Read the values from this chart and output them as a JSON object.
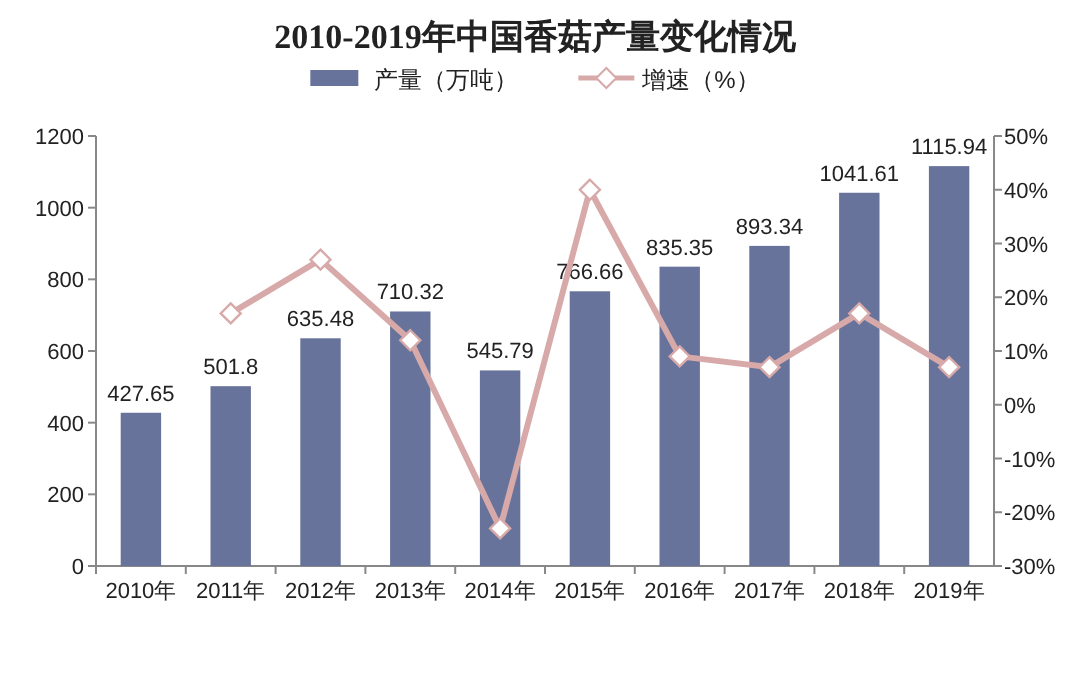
{
  "chart_data": {
    "type": "bar",
    "title": "2010-2019年中国香菇产量变化情况",
    "categories": [
      "2010年",
      "2011年",
      "2012年",
      "2013年",
      "2014年",
      "2015年",
      "2016年",
      "2017年",
      "2018年",
      "2019年"
    ],
    "series": [
      {
        "name": "产量（万吨）",
        "color": "#67739a",
        "values": [
          427.65,
          501.8,
          635.48,
          710.32,
          545.79,
          766.66,
          835.35,
          893.34,
          1041.61,
          1115.94
        ],
        "value_labels": [
          "427.65",
          "501.8",
          "635.48",
          "710.32",
          "545.79",
          "766.66",
          "835.35",
          "893.34",
          "1041.61",
          "1115.94"
        ]
      },
      {
        "name": "增速（%）",
        "type": "line",
        "axis": "y2",
        "color": "#d8a9a9",
        "values": [
          null,
          17,
          27,
          12,
          -23,
          40,
          9,
          7,
          17,
          7
        ]
      }
    ],
    "ylim": [
      0,
      1200
    ],
    "yticks": [
      0,
      200,
      400,
      600,
      800,
      1000,
      1200
    ],
    "y2lim": [
      -30,
      50
    ],
    "y2ticks": [
      {
        "value": -30,
        "label": "-30%"
      },
      {
        "value": -20,
        "label": "-20%"
      },
      {
        "value": -10,
        "label": "-10%"
      },
      {
        "value": 0,
        "label": "0%"
      },
      {
        "value": 10,
        "label": "10%"
      },
      {
        "value": 20,
        "label": "20%"
      },
      {
        "value": 30,
        "label": "30%"
      },
      {
        "value": 40,
        "label": "40%"
      },
      {
        "value": 50,
        "label": "50%"
      }
    ],
    "marker": "diamond",
    "legend": "top",
    "grid": false
  }
}
